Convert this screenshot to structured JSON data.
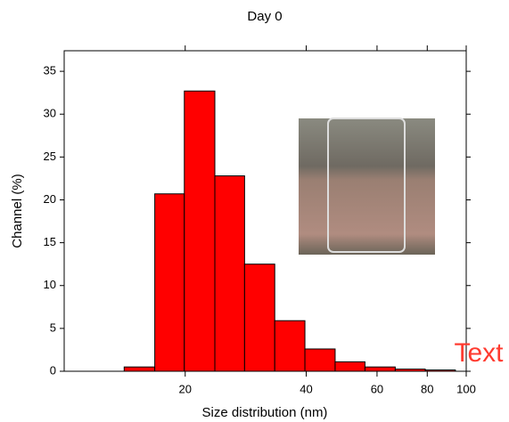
{
  "chart_data": {
    "type": "histogram",
    "title": "Day 0",
    "xlabel": "Size distribution (nm)",
    "ylabel": "Channel (%)",
    "bins": [
      14.1,
      16.8,
      19.9,
      23.7,
      28.1,
      33.4,
      39.7,
      47.2,
      56.0,
      66.6,
      79.1,
      94.0
    ],
    "values": [
      0.5,
      20.7,
      32.7,
      22.8,
      12.5,
      5.9,
      2.6,
      1.1,
      0.5,
      0.25,
      0.15
    ],
    "color": "#ff0000",
    "xlim": [
      10,
      100
    ],
    "xticks": [
      20,
      40,
      60,
      80,
      100
    ],
    "xscale": "log",
    "ylim": [
      0,
      37.4
    ],
    "yticks": [
      0,
      5,
      10,
      15,
      20,
      25,
      30,
      35
    ],
    "annotation": "Text"
  }
}
